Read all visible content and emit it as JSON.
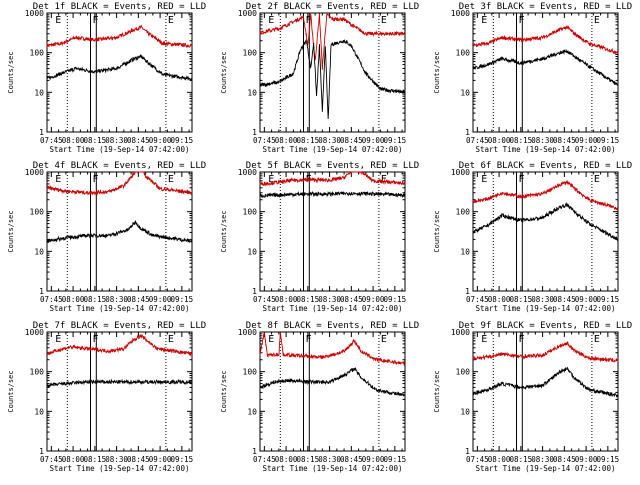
{
  "figure": {
    "xlabel": "Start Time (19-Sep-14 07:42:00)",
    "ylabel": "Counts/sec",
    "xtick_labels": [
      "07:45",
      "08:00",
      "08:15",
      "08:30",
      "08:45",
      "09:00",
      "09:15"
    ],
    "ytick_labels": [
      "1",
      "10",
      "100",
      "1000"
    ],
    "region_labels": [
      "E",
      "F",
      "E"
    ],
    "series_colors": {
      "events": "#000000",
      "lld": "#cc0000"
    }
  },
  "chart_data": [
    {
      "type": "line",
      "title": "Det 1f BLACK = Events, RED = LLD",
      "xlabel": "Start Time (19-Sep-14 07:42:00)",
      "ylabel": "Counts/sec",
      "x_range": [
        "07:42",
        "09:22"
      ],
      "y_range": [
        1,
        1000
      ],
      "y_scale": "log",
      "markers": {
        "dotted": [
          "07:56",
          "09:04"
        ],
        "solid": [
          "08:12",
          "08:16"
        ]
      },
      "series": [
        {
          "color": "#cc0000",
          "points": [
            [
              "07:42",
              150
            ],
            [
              "07:52",
              170
            ],
            [
              "08:02",
              240
            ],
            [
              "08:15",
              210
            ],
            [
              "08:30",
              240
            ],
            [
              "08:42",
              380
            ],
            [
              "08:47",
              440
            ],
            [
              "08:52",
              300
            ],
            [
              "09:02",
              170
            ],
            [
              "09:22",
              150
            ]
          ]
        },
        {
          "color": "#000000",
          "points": [
            [
              "07:42",
              22
            ],
            [
              "07:52",
              30
            ],
            [
              "08:02",
              40
            ],
            [
              "08:15",
              33
            ],
            [
              "08:30",
              40
            ],
            [
              "08:42",
              70
            ],
            [
              "08:47",
              80
            ],
            [
              "08:52",
              55
            ],
            [
              "09:02",
              28
            ],
            [
              "09:22",
              22
            ]
          ]
        }
      ]
    },
    {
      "type": "line",
      "title": "Det 2f BLACK = Events, RED = LLD",
      "xlabel": "Start Time (19-Sep-14 07:42:00)",
      "ylabel": "Counts/sec",
      "x_range": [
        "07:42",
        "09:22"
      ],
      "y_range": [
        1,
        1000
      ],
      "y_scale": "log",
      "markers": {
        "dotted": [
          "07:56",
          "09:04"
        ],
        "solid": [
          "08:12",
          "08:16"
        ]
      },
      "series": [
        {
          "color": "#cc0000",
          "points": [
            [
              "07:42",
              320
            ],
            [
              "07:55",
              400
            ],
            [
              "08:05",
              600
            ],
            [
              "08:12",
              800
            ],
            [
              "08:15",
              150
            ],
            [
              "08:17",
              900
            ],
            [
              "08:20",
              60
            ],
            [
              "08:23",
              900
            ],
            [
              "08:25",
              40
            ],
            [
              "08:28",
              900
            ],
            [
              "08:32",
              700
            ],
            [
              "08:40",
              700
            ],
            [
              "08:45",
              500
            ],
            [
              "08:55",
              300
            ],
            [
              "09:22",
              300
            ]
          ]
        },
        {
          "color": "#000000",
          "points": [
            [
              "07:42",
              15
            ],
            [
              "07:55",
              18
            ],
            [
              "08:05",
              30
            ],
            [
              "08:10",
              120
            ],
            [
              "08:14",
              200
            ],
            [
              "08:17",
              40
            ],
            [
              "08:19",
              180
            ],
            [
              "08:21",
              8
            ],
            [
              "08:23",
              150
            ],
            [
              "08:25",
              3
            ],
            [
              "08:27",
              160
            ],
            [
              "08:29",
              2
            ],
            [
              "08:31",
              160
            ],
            [
              "08:40",
              200
            ],
            [
              "08:45",
              150
            ],
            [
              "08:55",
              30
            ],
            [
              "09:05",
              12
            ],
            [
              "09:22",
              10
            ]
          ]
        }
      ]
    },
    {
      "type": "line",
      "title": "Det 3f BLACK = Events, RED = LLD",
      "xlabel": "Start Time (19-Sep-14 07:42:00)",
      "ylabel": "Counts/sec",
      "x_range": [
        "07:42",
        "09:22"
      ],
      "y_range": [
        1,
        1000
      ],
      "y_scale": "log",
      "markers": {
        "dotted": [
          "07:56",
          "09:04"
        ],
        "solid": [
          "08:12",
          "08:16"
        ]
      },
      "series": [
        {
          "color": "#cc0000",
          "points": [
            [
              "07:42",
              150
            ],
            [
              "07:52",
              170
            ],
            [
              "08:02",
              240
            ],
            [
              "08:15",
              210
            ],
            [
              "08:30",
              240
            ],
            [
              "08:42",
              380
            ],
            [
              "08:47",
              440
            ],
            [
              "08:52",
              300
            ],
            [
              "09:02",
              170
            ],
            [
              "09:22",
              100
            ]
          ]
        },
        {
          "color": "#000000",
          "points": [
            [
              "07:42",
              40
            ],
            [
              "07:52",
              50
            ],
            [
              "08:02",
              70
            ],
            [
              "08:15",
              55
            ],
            [
              "08:30",
              70
            ],
            [
              "08:42",
              100
            ],
            [
              "08:47",
              110
            ],
            [
              "08:52",
              80
            ],
            [
              "09:02",
              45
            ],
            [
              "09:22",
              15
            ]
          ]
        }
      ]
    },
    {
      "type": "line",
      "title": "Det 4f BLACK = Events, RED = LLD",
      "xlabel": "Start Time (19-Sep-14 07:42:00)",
      "ylabel": "Counts/sec",
      "x_range": [
        "07:42",
        "09:22"
      ],
      "y_range": [
        1,
        1000
      ],
      "y_scale": "log",
      "markers": {
        "dotted": [
          "07:56",
          "09:04"
        ],
        "solid": [
          "08:12",
          "08:16"
        ]
      },
      "series": [
        {
          "color": "#cc0000",
          "points": [
            [
              "07:42",
              400
            ],
            [
              "07:55",
              330
            ],
            [
              "08:10",
              300
            ],
            [
              "08:25",
              320
            ],
            [
              "08:35",
              450
            ],
            [
              "08:42",
              900
            ],
            [
              "08:45",
              1100
            ],
            [
              "08:48",
              1100
            ],
            [
              "08:50",
              800
            ],
            [
              "09:00",
              380
            ],
            [
              "09:22",
              300
            ]
          ]
        },
        {
          "color": "#000000",
          "points": [
            [
              "07:42",
              18
            ],
            [
              "07:55",
              22
            ],
            [
              "08:10",
              25
            ],
            [
              "08:25",
              25
            ],
            [
              "08:38",
              35
            ],
            [
              "08:43",
              55
            ],
            [
              "08:46",
              40
            ],
            [
              "08:55",
              25
            ],
            [
              "09:22",
              18
            ]
          ]
        }
      ]
    },
    {
      "type": "line",
      "title": "Det 5f BLACK = Events, RED = LLD",
      "xlabel": "Start Time (19-Sep-14 07:42:00)",
      "ylabel": "Counts/sec",
      "x_range": [
        "07:42",
        "09:22"
      ],
      "y_range": [
        1,
        1000
      ],
      "y_scale": "log",
      "markers": {
        "dotted": [
          "07:56",
          "09:04"
        ],
        "solid": [
          "08:12",
          "08:16"
        ]
      },
      "series": [
        {
          "color": "#cc0000",
          "points": [
            [
              "07:42",
              500
            ],
            [
              "07:55",
              550
            ],
            [
              "08:05",
              620
            ],
            [
              "08:15",
              640
            ],
            [
              "08:30",
              620
            ],
            [
              "08:40",
              720
            ],
            [
              "08:47",
              1200
            ],
            [
              "08:52",
              1000
            ],
            [
              "09:00",
              600
            ],
            [
              "09:22",
              520
            ]
          ]
        },
        {
          "color": "#000000",
          "points": [
            [
              "07:42",
              250
            ],
            [
              "08:00",
              270
            ],
            [
              "08:15",
              280
            ],
            [
              "08:30",
              280
            ],
            [
              "08:45",
              290
            ],
            [
              "09:00",
              280
            ],
            [
              "09:22",
              260
            ]
          ]
        }
      ]
    },
    {
      "type": "line",
      "title": "Det 6f BLACK = Events, RED = LLD",
      "xlabel": "Start Time (19-Sep-14 07:42:00)",
      "ylabel": "Counts/sec",
      "x_range": [
        "07:42",
        "09:22"
      ],
      "y_range": [
        1,
        1000
      ],
      "y_scale": "log",
      "markers": {
        "dotted": [
          "07:56",
          "09:04"
        ],
        "solid": [
          "08:12",
          "08:16"
        ]
      },
      "series": [
        {
          "color": "#cc0000",
          "points": [
            [
              "07:42",
              180
            ],
            [
              "07:52",
              210
            ],
            [
              "08:02",
              300
            ],
            [
              "08:15",
              240
            ],
            [
              "08:30",
              280
            ],
            [
              "08:42",
              480
            ],
            [
              "08:47",
              560
            ],
            [
              "08:52",
              380
            ],
            [
              "09:02",
              200
            ],
            [
              "09:22",
              120
            ]
          ]
        },
        {
          "color": "#000000",
          "points": [
            [
              "07:42",
              30
            ],
            [
              "07:52",
              45
            ],
            [
              "08:02",
              80
            ],
            [
              "08:15",
              60
            ],
            [
              "08:30",
              70
            ],
            [
              "08:42",
              130
            ],
            [
              "08:47",
              150
            ],
            [
              "08:52",
              100
            ],
            [
              "09:02",
              50
            ],
            [
              "09:22",
              20
            ]
          ]
        }
      ]
    },
    {
      "type": "line",
      "title": "Det 7f BLACK = Events, RED = LLD",
      "xlabel": "Start Time (19-Sep-14 07:42:00)",
      "ylabel": "Counts/sec",
      "x_range": [
        "07:42",
        "09:22"
      ],
      "y_range": [
        1,
        1000
      ],
      "y_scale": "log",
      "markers": {
        "dotted": [
          "07:56",
          "09:04"
        ],
        "solid": [
          "08:12",
          "08:16"
        ]
      },
      "series": [
        {
          "color": "#cc0000",
          "points": [
            [
              "07:42",
              280
            ],
            [
              "07:50",
              350
            ],
            [
              "07:58",
              420
            ],
            [
              "08:10",
              380
            ],
            [
              "08:25",
              330
            ],
            [
              "08:35",
              380
            ],
            [
              "08:42",
              650
            ],
            [
              "08:47",
              800
            ],
            [
              "08:50",
              650
            ],
            [
              "08:58",
              380
            ],
            [
              "09:22",
              280
            ]
          ]
        },
        {
          "color": "#000000",
          "points": [
            [
              "07:42",
              45
            ],
            [
              "07:55",
              50
            ],
            [
              "08:10",
              55
            ],
            [
              "08:25",
              55
            ],
            [
              "08:40",
              55
            ],
            [
              "08:55",
              55
            ],
            [
              "09:22",
              55
            ]
          ]
        }
      ]
    },
    {
      "type": "line",
      "title": "Det 8f BLACK = Events, RED = LLD",
      "xlabel": "Start Time (19-Sep-14 07:42:00)",
      "ylabel": "Counts/sec",
      "x_range": [
        "07:42",
        "09:22"
      ],
      "y_range": [
        1,
        1000
      ],
      "y_scale": "log",
      "markers": {
        "dotted": [
          "07:56",
          "09:04"
        ],
        "solid": [
          "08:12",
          "08:16"
        ]
      },
      "series": [
        {
          "color": "#cc0000",
          "points": [
            [
              "07:42",
              260
            ],
            [
              "07:45",
              1000
            ],
            [
              "07:47",
              260
            ],
            [
              "07:55",
              270
            ],
            [
              "07:56",
              1000
            ],
            [
              "07:58",
              270
            ],
            [
              "08:10",
              250
            ],
            [
              "08:25",
              230
            ],
            [
              "08:40",
              320
            ],
            [
              "08:47",
              600
            ],
            [
              "08:52",
              320
            ],
            [
              "09:02",
              200
            ],
            [
              "09:22",
              160
            ]
          ]
        },
        {
          "color": "#000000",
          "points": [
            [
              "07:42",
              40
            ],
            [
              "07:52",
              55
            ],
            [
              "08:02",
              60
            ],
            [
              "08:15",
              55
            ],
            [
              "08:30",
              55
            ],
            [
              "08:42",
              90
            ],
            [
              "08:47",
              120
            ],
            [
              "08:52",
              70
            ],
            [
              "09:02",
              35
            ],
            [
              "09:22",
              25
            ]
          ]
        }
      ]
    },
    {
      "type": "line",
      "title": "Det 9f BLACK = Events, RED = LLD",
      "xlabel": "Start Time (19-Sep-14 07:42:00)",
      "ylabel": "Counts/sec",
      "x_range": [
        "07:42",
        "09:22"
      ],
      "y_range": [
        1,
        1000
      ],
      "y_scale": "log",
      "markers": {
        "dotted": [
          "07:56",
          "09:04"
        ],
        "solid": [
          "08:12",
          "08:16"
        ]
      },
      "series": [
        {
          "color": "#cc0000",
          "points": [
            [
              "07:42",
              220
            ],
            [
              "07:52",
              230
            ],
            [
              "08:02",
              280
            ],
            [
              "08:15",
              240
            ],
            [
              "08:30",
              260
            ],
            [
              "08:42",
              450
            ],
            [
              "08:47",
              520
            ],
            [
              "08:52",
              340
            ],
            [
              "09:02",
              220
            ],
            [
              "09:22",
              190
            ]
          ]
        },
        {
          "color": "#000000",
          "points": [
            [
              "07:42",
              28
            ],
            [
              "07:52",
              35
            ],
            [
              "08:02",
              50
            ],
            [
              "08:15",
              40
            ],
            [
              "08:30",
              45
            ],
            [
              "08:42",
              100
            ],
            [
              "08:47",
              120
            ],
            [
              "08:52",
              70
            ],
            [
              "09:02",
              35
            ],
            [
              "09:22",
              25
            ]
          ]
        }
      ]
    }
  ]
}
